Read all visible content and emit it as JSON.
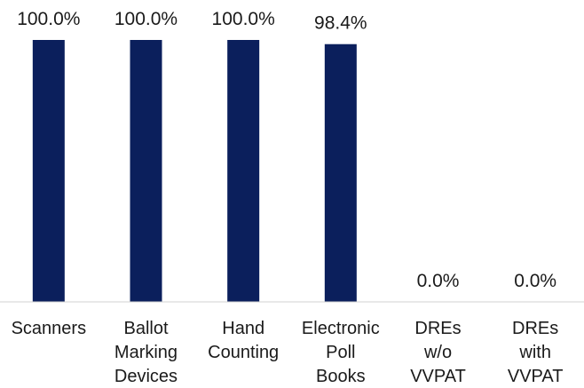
{
  "chart_data": {
    "type": "bar",
    "categories": [
      [
        "Scanners"
      ],
      [
        "Ballot",
        "Marking",
        "Devices"
      ],
      [
        "Hand",
        "Counting"
      ],
      [
        "Electronic",
        "Poll",
        "Books"
      ],
      [
        "DREs",
        "w/o",
        "VVPAT"
      ],
      [
        "DREs",
        "with",
        "VVPAT"
      ]
    ],
    "values": [
      100.0,
      100.0,
      100.0,
      98.4,
      0.0,
      0.0
    ],
    "data_labels": [
      "100.0%",
      "100.0%",
      "100.0%",
      "98.4%",
      "0.0%",
      "0.0%"
    ],
    "title": "",
    "xlabel": "",
    "ylabel": "",
    "ylim": [
      0,
      100
    ],
    "grid": false,
    "legend": "none",
    "colors": {
      "bar": "#0b1f5c",
      "axis": "#d0d0d0",
      "text": "#1a1a1a"
    }
  }
}
